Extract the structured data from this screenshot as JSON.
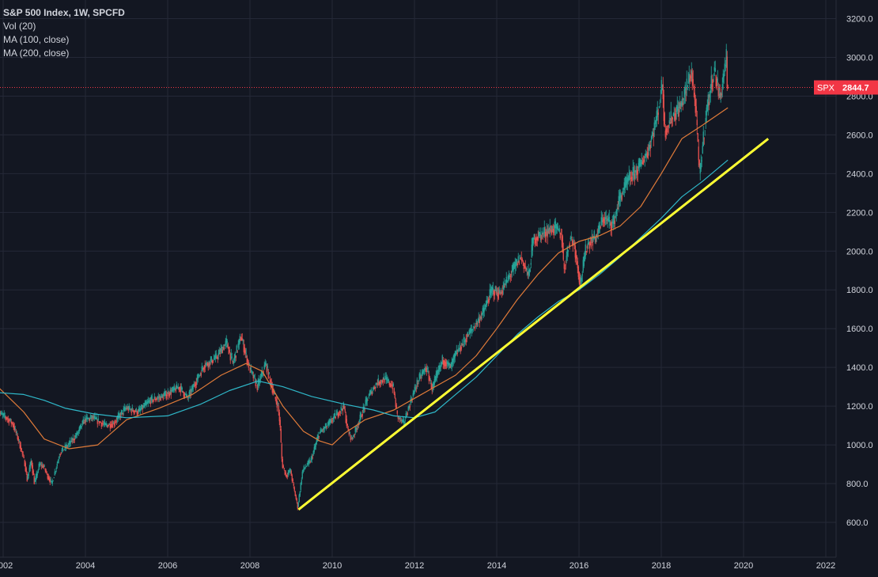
{
  "legend": {
    "title": "S&P 500 Index, 1W, SPCFD",
    "lines": [
      "Vol (20)",
      "MA (100, close)",
      "MA (200, close)"
    ]
  },
  "price_badge": {
    "symbol": "SPX",
    "value": "2844.7"
  },
  "colors": {
    "background": "#131722",
    "grid": "#242837",
    "axis_text": "#d1d4dc",
    "candle_up": "#26a69a",
    "candle_down": "#ef5350",
    "ma100": "#e07b39",
    "ma200": "#2fb8c9",
    "trendline": "#ffff33",
    "price_line": "#f23645"
  },
  "chart_data": {
    "type": "candlestick",
    "title": "S&P 500 Index, 1W, SPCFD",
    "x_axis": {
      "type": "date",
      "ticks": [
        "2002",
        "2004",
        "2006",
        "2008",
        "2010",
        "2012",
        "2014",
        "2016",
        "2018",
        "2020",
        "2022"
      ],
      "range": [
        2002.0,
        2022.0
      ]
    },
    "y_axis": {
      "ticks": [
        "600.0",
        "800.0",
        "1000.0",
        "1200.0",
        "1400.0",
        "1600.0",
        "1800.0",
        "2000.0",
        "2200.0",
        "2400.0",
        "2600.0",
        "2800.0",
        "3000.0",
        "3200.0"
      ],
      "range": [
        500,
        3300
      ],
      "position": "right"
    },
    "grid": true,
    "last_price": 2844.7,
    "price_path": [
      [
        2001.87,
        1170
      ],
      [
        2002.1,
        1140
      ],
      [
        2002.25,
        1110
      ],
      [
        2002.4,
        1020
      ],
      [
        2002.55,
        900
      ],
      [
        2002.6,
        820
      ],
      [
        2002.7,
        920
      ],
      [
        2002.78,
        800
      ],
      [
        2002.9,
        900
      ],
      [
        2003.0,
        890
      ],
      [
        2003.1,
        840
      ],
      [
        2003.2,
        800
      ],
      [
        2003.4,
        960
      ],
      [
        2003.6,
        1000
      ],
      [
        2003.8,
        1050
      ],
      [
        2004.0,
        1130
      ],
      [
        2004.2,
        1140
      ],
      [
        2004.5,
        1100
      ],
      [
        2004.7,
        1110
      ],
      [
        2005.0,
        1190
      ],
      [
        2005.3,
        1170
      ],
      [
        2005.6,
        1230
      ],
      [
        2005.9,
        1250
      ],
      [
        2006.3,
        1300
      ],
      [
        2006.5,
        1240
      ],
      [
        2006.9,
        1410
      ],
      [
        2007.2,
        1450
      ],
      [
        2007.45,
        1530
      ],
      [
        2007.6,
        1420
      ],
      [
        2007.8,
        1560
      ],
      [
        2008.0,
        1400
      ],
      [
        2008.2,
        1300
      ],
      [
        2008.4,
        1420
      ],
      [
        2008.6,
        1260
      ],
      [
        2008.7,
        1200
      ],
      [
        2008.75,
        1100
      ],
      [
        2008.8,
        900
      ],
      [
        2008.9,
        840
      ],
      [
        2009.0,
        870
      ],
      [
        2009.1,
        760
      ],
      [
        2009.18,
        680
      ],
      [
        2009.3,
        870
      ],
      [
        2009.5,
        920
      ],
      [
        2009.7,
        1060
      ],
      [
        2009.9,
        1100
      ],
      [
        2010.1,
        1150
      ],
      [
        2010.3,
        1200
      ],
      [
        2010.4,
        1070
      ],
      [
        2010.5,
        1030
      ],
      [
        2010.7,
        1140
      ],
      [
        2010.9,
        1250
      ],
      [
        2011.1,
        1320
      ],
      [
        2011.3,
        1340
      ],
      [
        2011.5,
        1300
      ],
      [
        2011.6,
        1150
      ],
      [
        2011.75,
        1110
      ],
      [
        2011.95,
        1240
      ],
      [
        2012.1,
        1330
      ],
      [
        2012.3,
        1400
      ],
      [
        2012.45,
        1290
      ],
      [
        2012.7,
        1440
      ],
      [
        2012.9,
        1400
      ],
      [
        2013.0,
        1460
      ],
      [
        2013.3,
        1560
      ],
      [
        2013.5,
        1620
      ],
      [
        2013.7,
        1690
      ],
      [
        2013.9,
        1800
      ],
      [
        2014.1,
        1780
      ],
      [
        2014.4,
        1900
      ],
      [
        2014.6,
        1970
      ],
      [
        2014.8,
        1870
      ],
      [
        2014.9,
        2060
      ],
      [
        2015.2,
        2100
      ],
      [
        2015.45,
        2120
      ],
      [
        2015.6,
        2080
      ],
      [
        2015.65,
        1900
      ],
      [
        2015.8,
        2070
      ],
      [
        2015.9,
        2040
      ],
      [
        2016.05,
        1830
      ],
      [
        2016.2,
        2030
      ],
      [
        2016.45,
        2080
      ],
      [
        2016.6,
        2170
      ],
      [
        2016.85,
        2140
      ],
      [
        2017.0,
        2270
      ],
      [
        2017.2,
        2360
      ],
      [
        2017.5,
        2440
      ],
      [
        2017.7,
        2520
      ],
      [
        2017.9,
        2680
      ],
      [
        2018.05,
        2870
      ],
      [
        2018.1,
        2620
      ],
      [
        2018.3,
        2700
      ],
      [
        2018.5,
        2750
      ],
      [
        2018.75,
        2930
      ],
      [
        2018.85,
        2750
      ],
      [
        2018.95,
        2390
      ],
      [
        2019.1,
        2700
      ],
      [
        2019.3,
        2940
      ],
      [
        2019.45,
        2790
      ],
      [
        2019.6,
        3010
      ],
      [
        2019.62,
        2844.7
      ]
    ],
    "series": [
      {
        "name": "MA (100, close)",
        "points": [
          [
            2001.87,
            1300
          ],
          [
            2002.5,
            1170
          ],
          [
            2003.0,
            1030
          ],
          [
            2003.6,
            980
          ],
          [
            2004.3,
            1000
          ],
          [
            2005.0,
            1130
          ],
          [
            2005.8,
            1190
          ],
          [
            2006.6,
            1260
          ],
          [
            2007.3,
            1360
          ],
          [
            2007.9,
            1420
          ],
          [
            2008.3,
            1380
          ],
          [
            2008.8,
            1200
          ],
          [
            2009.3,
            1070
          ],
          [
            2009.7,
            1020
          ],
          [
            2010.0,
            1000
          ],
          [
            2010.3,
            1060
          ],
          [
            2010.8,
            1130
          ],
          [
            2011.5,
            1180
          ],
          [
            2012.0,
            1240
          ],
          [
            2012.5,
            1300
          ],
          [
            2013.0,
            1360
          ],
          [
            2013.5,
            1460
          ],
          [
            2014.0,
            1600
          ],
          [
            2014.5,
            1750
          ],
          [
            2015.0,
            1880
          ],
          [
            2015.5,
            1990
          ],
          [
            2016.0,
            2050
          ],
          [
            2016.5,
            2080
          ],
          [
            2017.0,
            2130
          ],
          [
            2017.5,
            2230
          ],
          [
            2018.0,
            2400
          ],
          [
            2018.5,
            2580
          ],
          [
            2019.0,
            2650
          ],
          [
            2019.62,
            2740
          ]
        ]
      },
      {
        "name": "MA (200, close)",
        "points": [
          [
            2001.87,
            1270
          ],
          [
            2002.5,
            1260
          ],
          [
            2003.0,
            1230
          ],
          [
            2003.5,
            1190
          ],
          [
            2004.2,
            1160
          ],
          [
            2005.0,
            1140
          ],
          [
            2006.0,
            1150
          ],
          [
            2006.8,
            1210
          ],
          [
            2007.5,
            1280
          ],
          [
            2008.2,
            1330
          ],
          [
            2008.8,
            1300
          ],
          [
            2009.5,
            1250
          ],
          [
            2010.3,
            1210
          ],
          [
            2011.0,
            1180
          ],
          [
            2011.5,
            1150
          ],
          [
            2012.0,
            1140
          ],
          [
            2012.5,
            1170
          ],
          [
            2013.0,
            1260
          ],
          [
            2013.5,
            1350
          ],
          [
            2014.0,
            1460
          ],
          [
            2014.5,
            1570
          ],
          [
            2015.0,
            1660
          ],
          [
            2015.5,
            1740
          ],
          [
            2016.0,
            1800
          ],
          [
            2016.5,
            1880
          ],
          [
            2017.0,
            1970
          ],
          [
            2017.5,
            2070
          ],
          [
            2018.0,
            2170
          ],
          [
            2018.5,
            2280
          ],
          [
            2019.0,
            2360
          ],
          [
            2019.62,
            2470
          ]
        ]
      },
      {
        "name": "",
        "kind": "trendline",
        "points": [
          [
            2009.18,
            666
          ],
          [
            2020.6,
            2580
          ]
        ]
      }
    ]
  }
}
